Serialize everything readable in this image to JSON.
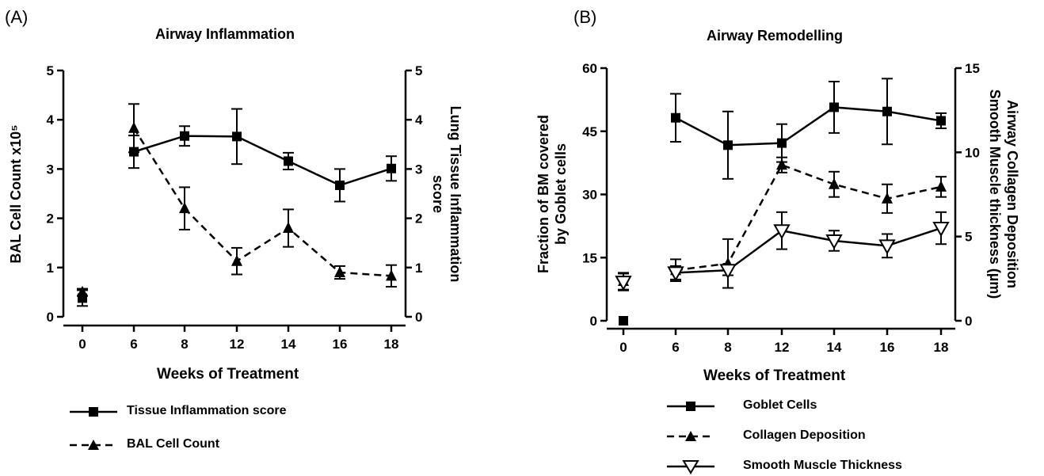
{
  "panels": [
    {
      "panel_label": "(A)",
      "legend": [
        {
          "label": "Tissue Inflammation score",
          "style": "solid",
          "marker": "square"
        },
        {
          "label": "BAL Cell Count",
          "style": "dashed",
          "marker": "triangle"
        }
      ]
    },
    {
      "panel_label": "(B)",
      "legend": [
        {
          "label": "Goblet Cells",
          "style": "solid",
          "marker": "square"
        },
        {
          "label": "Collagen Deposition",
          "style": "dashed",
          "marker": "triangle"
        },
        {
          "label": "Smooth Muscle Thickness",
          "style": "solid",
          "marker": "triangle-down-open"
        }
      ]
    }
  ],
  "chart_data": [
    {
      "type": "line",
      "title": "Airway Inflammation",
      "xlabel": "Weeks of Treatment",
      "ylabel": "BAL Cell Count x10⁵",
      "ylabel_right": "Lung Tissue Inflammation score",
      "ylabel_right_lines": [
        "Lung Tissue Inflammation",
        "score"
      ],
      "categories": [
        "0",
        "6",
        "8",
        "12",
        "14",
        "16",
        "18"
      ],
      "ylim": [
        0,
        5
      ],
      "yticks": [
        "0",
        "1",
        "2",
        "3",
        "4",
        "5"
      ],
      "ylim_right": [
        0,
        5
      ],
      "yticks_right": [
        "0",
        "1",
        "2",
        "3",
        "4",
        "5"
      ],
      "grid": false,
      "series": [
        {
          "name": "Tissue Inflammation score",
          "axis": "right",
          "style": "solid",
          "marker": "square",
          "values": [
            0.38,
            3.35,
            3.67,
            3.66,
            3.16,
            2.67,
            3.01
          ],
          "errors": [
            0.16,
            0.33,
            0.2,
            0.56,
            0.17,
            0.33,
            0.25
          ]
        },
        {
          "name": "BAL Cell Count",
          "axis": "left",
          "style": "dashed",
          "marker": "triangle",
          "values": [
            0.5,
            3.83,
            2.2,
            1.13,
            1.8,
            0.9,
            0.83
          ],
          "errors": [
            0.07,
            0.49,
            0.43,
            0.27,
            0.38,
            0.13,
            0.22
          ]
        }
      ]
    },
    {
      "type": "line",
      "title": "Airway Remodelling",
      "xlabel": "Weeks of Treatment",
      "ylabel": "Fraction of BM covered by Goblet cells",
      "ylabel_lines": [
        "Fraction of BM covered",
        "by Goblet cells"
      ],
      "ylabel_right": "Airway Collagen Deposition Smooth Muscle thickness (µm)",
      "ylabel_right_lines": [
        "Airway Collagen Deposition",
        "Smooth Muscle thickness (µm)"
      ],
      "categories": [
        "0",
        "6",
        "8",
        "12",
        "14",
        "16",
        "18"
      ],
      "ylim": [
        0,
        60
      ],
      "yticks": [
        "0",
        "15",
        "30",
        "45",
        "60"
      ],
      "ylim_right": [
        0,
        15
      ],
      "yticks_right": [
        "0",
        "5",
        "10",
        "15"
      ],
      "grid": false,
      "series": [
        {
          "name": "Goblet Cells",
          "axis": "left",
          "style": "solid",
          "marker": "square",
          "values": [
            0,
            48.2,
            41.7,
            42.2,
            50.7,
            49.7,
            47.5
          ],
          "errors": [
            0,
            5.7,
            8.0,
            4.5,
            6.1,
            7.8,
            1.8
          ]
        },
        {
          "name": "Collagen Deposition",
          "axis": "right",
          "style": "dashed",
          "marker": "triangle",
          "values": [
            2.35,
            3.0,
            3.4,
            9.25,
            8.1,
            7.25,
            7.95
          ],
          "errors": [
            0.5,
            0.65,
            1.45,
            0.45,
            0.75,
            0.85,
            0.6
          ]
        },
        {
          "name": "Smooth Muscle Thickness",
          "axis": "right",
          "style": "solid",
          "marker": "triangle-down-open",
          "values": [
            2.3,
            2.85,
            3.0,
            5.35,
            4.75,
            4.45,
            5.5
          ],
          "errors": [
            0.5,
            0.4,
            0.3,
            1.1,
            0.6,
            0.7,
            0.95
          ]
        }
      ]
    }
  ]
}
